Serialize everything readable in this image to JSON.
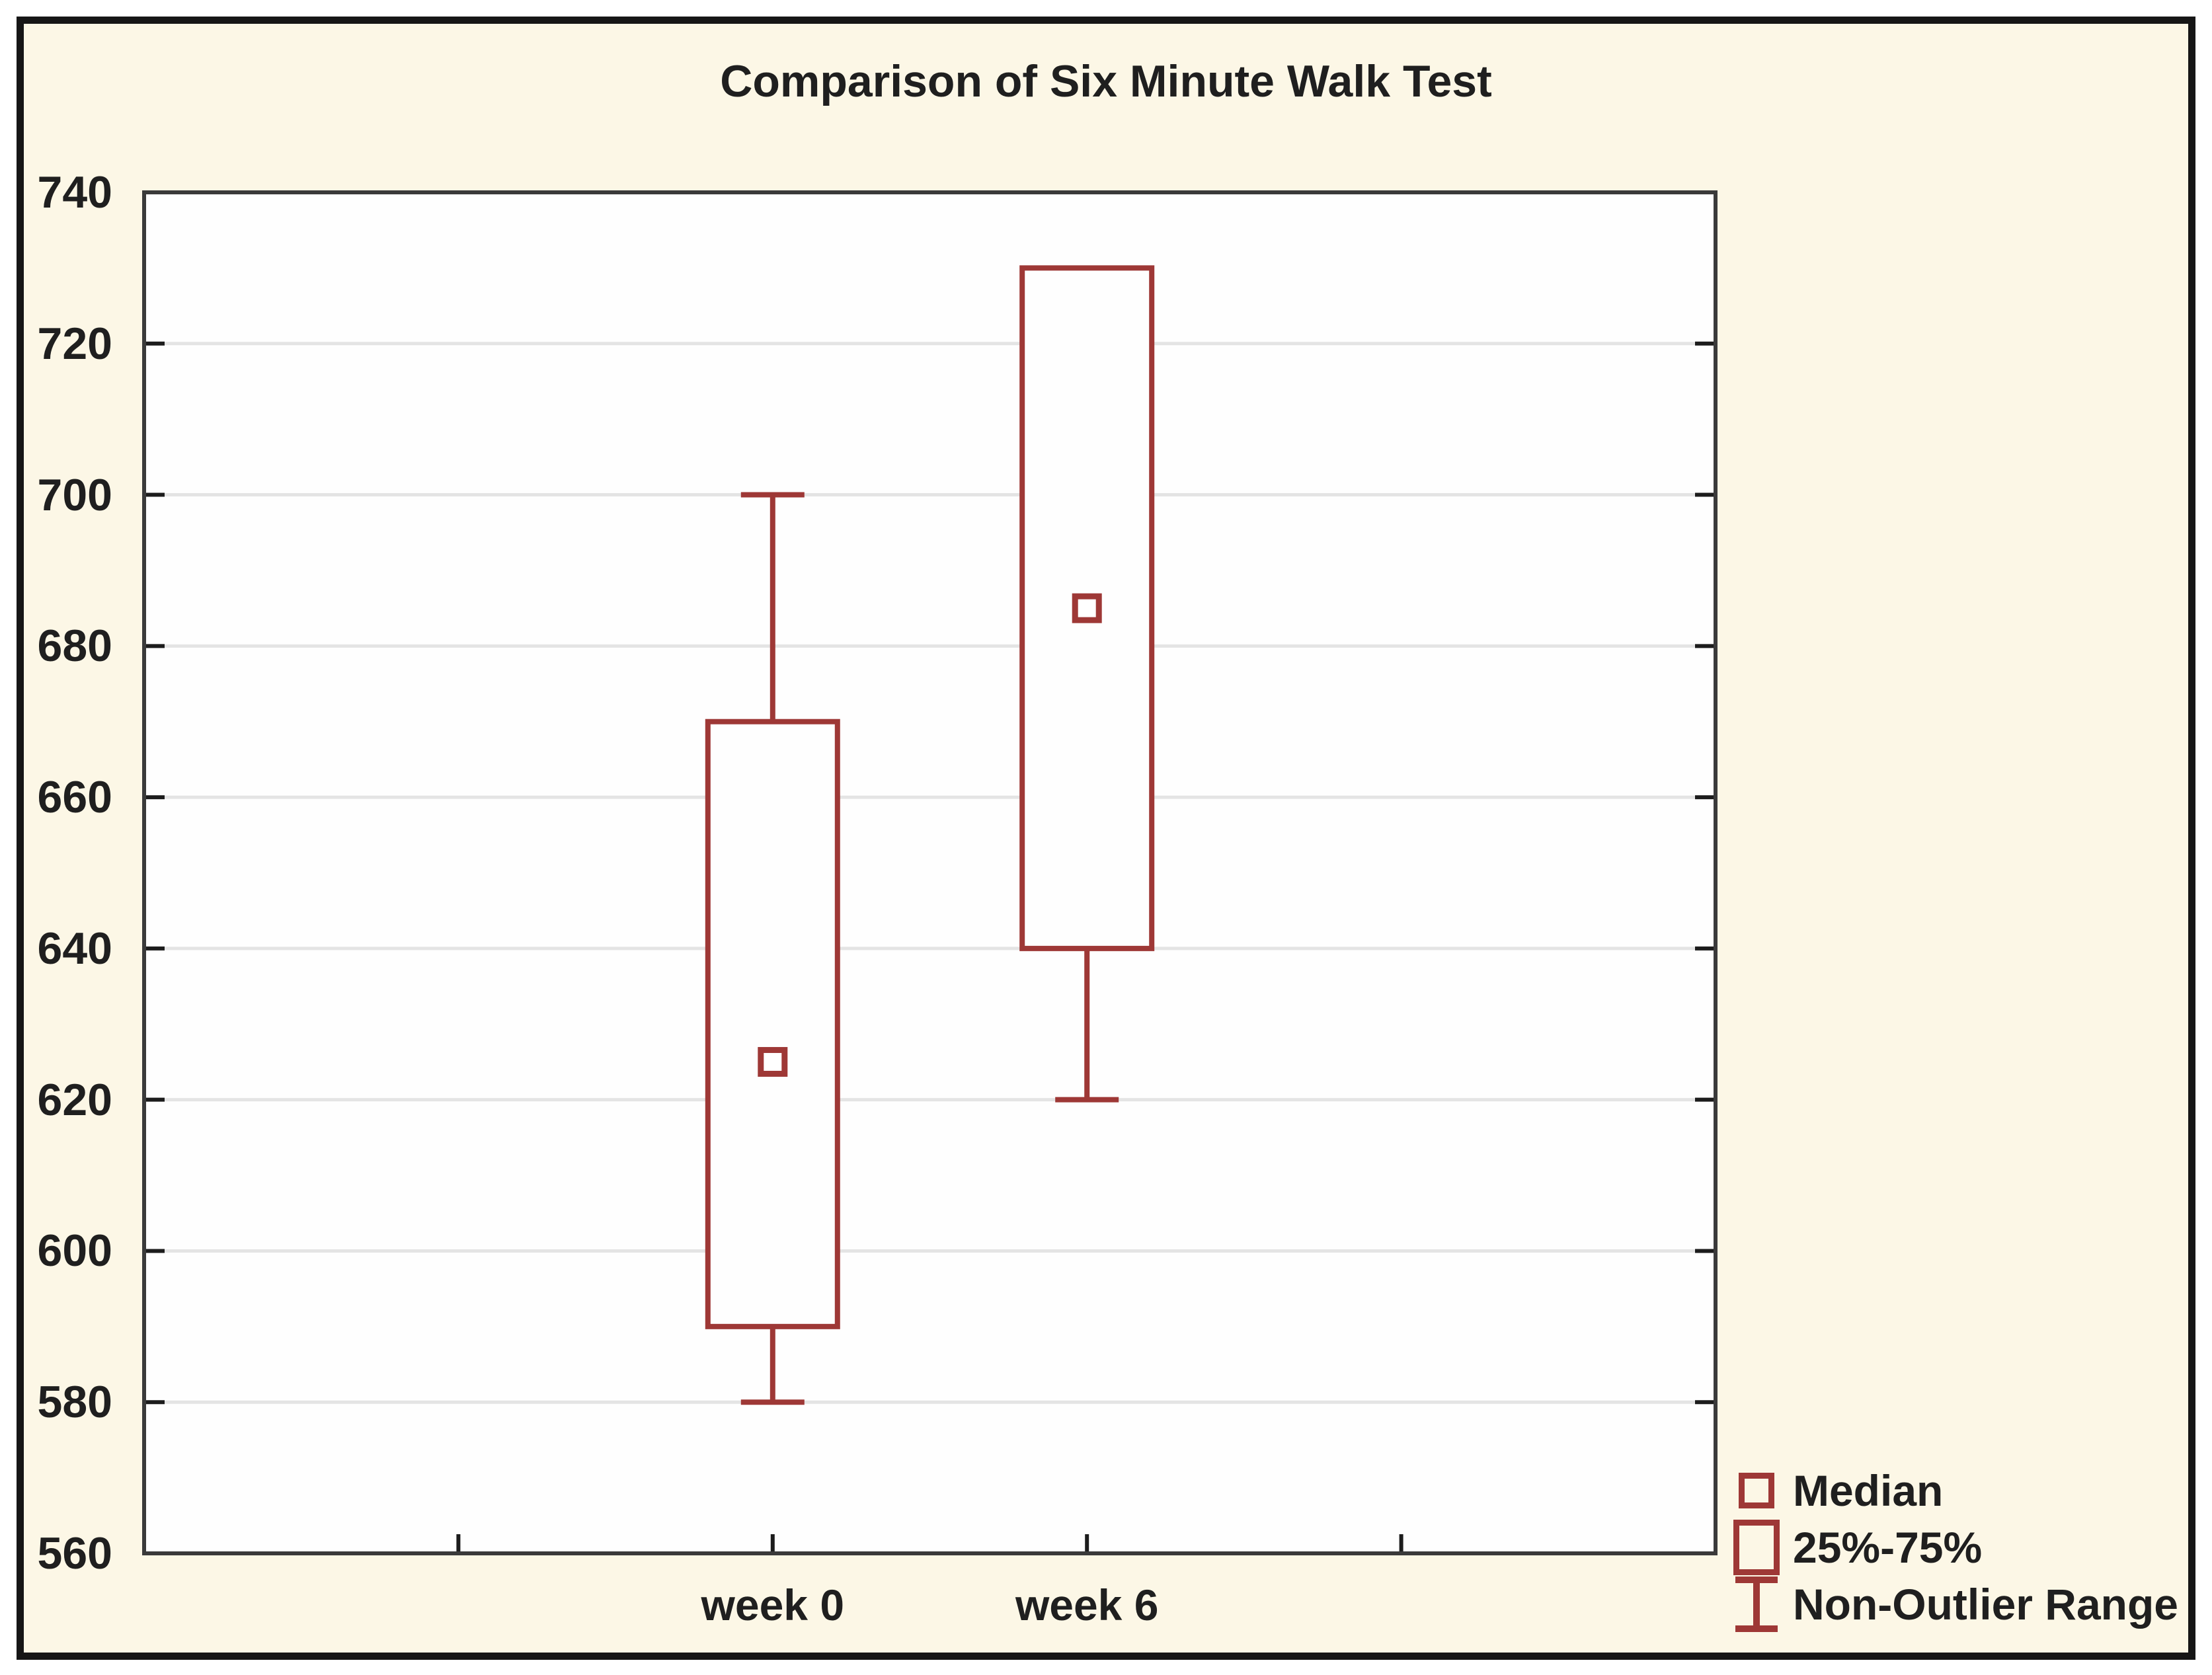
{
  "title": "Comparison of Six Minute Walk Test",
  "colors": {
    "outer_border": "#161616",
    "panel_background": "#fcf7e6",
    "plot_background": "#fefefe",
    "plot_frame": "#3a3a3a",
    "gridline": "#e4e4e4",
    "tick": "#1c1c1c",
    "box_accent": "#9e3836",
    "text": "#1f1f1f"
  },
  "chart_data": {
    "type": "box",
    "title": "Comparison of Six Minute Walk Test",
    "xlabel": "",
    "ylabel": "",
    "categories": [
      "week 0",
      "week 6"
    ],
    "series": [
      {
        "name": "week 0",
        "min": 580,
        "q1": 590,
        "median": 625,
        "q3": 670,
        "max": 700
      },
      {
        "name": "week 6",
        "min": 620,
        "q1": 640,
        "median": 685,
        "q3": 730,
        "max": 730
      }
    ],
    "y_axis": {
      "min": 560,
      "max": 740,
      "step": 20
    },
    "grid": true,
    "legend_position": "bottom-right",
    "legend": [
      {
        "icon": "median-square-icon",
        "label": "Median"
      },
      {
        "icon": "box-rect-icon",
        "label": "25%-75%"
      },
      {
        "icon": "whisker-ibeam-icon",
        "label": "Non-Outlier Range"
      }
    ]
  }
}
